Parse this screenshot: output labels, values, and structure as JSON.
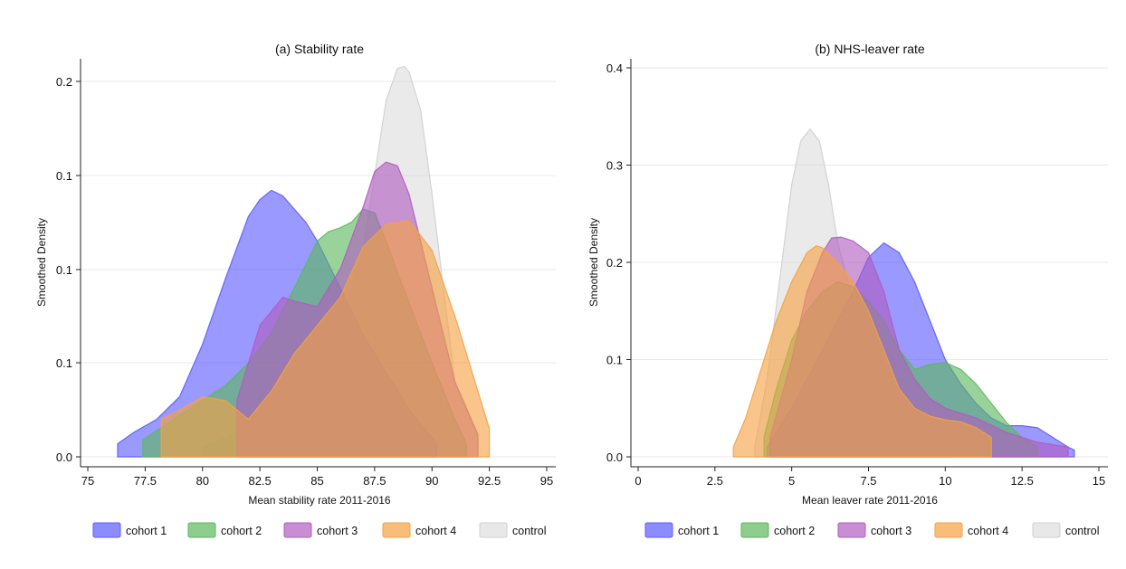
{
  "chart_data": [
    {
      "type": "area",
      "title": "(a) Stability rate",
      "xlabel": "Mean stability rate 2011-2016",
      "ylabel": "Smoothed Density",
      "xlim": [
        75,
        95
      ],
      "ylim": [
        0,
        0.2
      ],
      "xticks": [
        "75",
        "77.5",
        "80",
        "82.5",
        "85",
        "87.5",
        "90",
        "92.5",
        "95"
      ],
      "yticks": [
        "0.0",
        "0.1",
        "0.1",
        "0.1",
        "0.1",
        "0.2"
      ],
      "grid": "horizontal",
      "legend_position": "bottom",
      "series": [
        {
          "name": "cohort 1",
          "color": "#5b5bff",
          "x": [
            76.3,
            77,
            78,
            79,
            80,
            81,
            82,
            82.5,
            83,
            83.5,
            84,
            84.5,
            85,
            86,
            87,
            88,
            89,
            90.2
          ],
          "y": [
            0.007,
            0.013,
            0.02,
            0.032,
            0.06,
            0.095,
            0.128,
            0.137,
            0.142,
            0.139,
            0.132,
            0.125,
            0.115,
            0.09,
            0.065,
            0.045,
            0.025,
            0.007
          ]
        },
        {
          "name": "cohort 2",
          "color": "#5cb85c",
          "x": [
            77.4,
            79,
            80,
            81,
            82,
            83,
            84,
            85,
            85.5,
            86,
            86.5,
            87,
            87.5,
            88,
            88.5,
            89,
            90,
            91,
            91.5
          ],
          "y": [
            0.009,
            0.022,
            0.03,
            0.038,
            0.05,
            0.066,
            0.09,
            0.115,
            0.12,
            0.122,
            0.125,
            0.132,
            0.13,
            0.115,
            0.098,
            0.082,
            0.05,
            0.02,
            0.007
          ]
        },
        {
          "name": "cohort 3",
          "color": "#b05cc0",
          "x": [
            81.5,
            82.5,
            83.5,
            84,
            85,
            86,
            87,
            87.5,
            88,
            88.5,
            89,
            90,
            91,
            92
          ],
          "y": [
            0.03,
            0.07,
            0.085,
            0.083,
            0.08,
            0.1,
            0.133,
            0.152,
            0.157,
            0.155,
            0.14,
            0.09,
            0.04,
            0.012
          ]
        },
        {
          "name": "cohort 4",
          "color": "#f5a142",
          "x": [
            78.2,
            79,
            80,
            81,
            82,
            83,
            84,
            85,
            86,
            87,
            88,
            89,
            90,
            91,
            92,
            92.5
          ],
          "y": [
            0.02,
            0.025,
            0.032,
            0.03,
            0.02,
            0.035,
            0.055,
            0.07,
            0.085,
            0.112,
            0.124,
            0.126,
            0.11,
            0.075,
            0.035,
            0.015
          ]
        },
        {
          "name": "control",
          "color": "#d9d9d9",
          "x": [
            80,
            81,
            82,
            83,
            84,
            85,
            86,
            87,
            87.5,
            88,
            88.5,
            88.8,
            89,
            89.5,
            90,
            90.5,
            91,
            92
          ],
          "y": [
            0.005,
            0.01,
            0.016,
            0.024,
            0.036,
            0.05,
            0.07,
            0.11,
            0.15,
            0.19,
            0.207,
            0.208,
            0.205,
            0.185,
            0.14,
            0.09,
            0.04,
            0.01
          ]
        }
      ]
    },
    {
      "type": "area",
      "title": "(b) NHS-leaver rate",
      "xlabel": "Mean leaver rate 2011-2016",
      "ylabel": "Smoothed Density",
      "xlim": [
        0,
        15
      ],
      "ylim": [
        0,
        0.4
      ],
      "xticks": [
        "0",
        "2.5",
        "5",
        "7.5",
        "10",
        "12.5",
        "15"
      ],
      "yticks": [
        "0.0",
        "0.1",
        "0.2",
        "0.3",
        "0.4"
      ],
      "grid": "horizontal",
      "legend_position": "bottom",
      "series": [
        {
          "name": "cohort 1",
          "color": "#5b5bff",
          "x": [
            4.2,
            5,
            6,
            7,
            7.5,
            8,
            8.5,
            9,
            9.5,
            10,
            10.5,
            11,
            11.5,
            12,
            12.5,
            13,
            13.5,
            14,
            14.2
          ],
          "y": [
            0.01,
            0.05,
            0.11,
            0.17,
            0.205,
            0.22,
            0.21,
            0.18,
            0.14,
            0.1,
            0.075,
            0.055,
            0.04,
            0.032,
            0.032,
            0.03,
            0.02,
            0.01,
            0.007
          ]
        },
        {
          "name": "cohort 2",
          "color": "#5cb85c",
          "x": [
            4.1,
            4.5,
            5,
            5.5,
            6,
            6.5,
            7,
            7.5,
            8,
            8.5,
            9,
            9.5,
            10,
            10.5,
            11,
            11.5,
            12,
            12.5,
            13
          ],
          "y": [
            0.02,
            0.07,
            0.12,
            0.15,
            0.17,
            0.18,
            0.175,
            0.16,
            0.14,
            0.11,
            0.09,
            0.095,
            0.097,
            0.09,
            0.075,
            0.055,
            0.035,
            0.02,
            0.01
          ]
        },
        {
          "name": "cohort 3",
          "color": "#b05cc0",
          "x": [
            4.3,
            5,
            5.5,
            6,
            6.3,
            6.6,
            7,
            7.5,
            8,
            8.5,
            9,
            9.5,
            10,
            11,
            12,
            13,
            14
          ],
          "y": [
            0.02,
            0.1,
            0.17,
            0.21,
            0.225,
            0.226,
            0.222,
            0.21,
            0.17,
            0.11,
            0.08,
            0.06,
            0.05,
            0.04,
            0.025,
            0.015,
            0.01
          ]
        },
        {
          "name": "cohort 4",
          "color": "#f5a142",
          "x": [
            3.1,
            3.5,
            4,
            4.5,
            5,
            5.5,
            5.8,
            6,
            6.5,
            7,
            7.5,
            8,
            8.5,
            9,
            9.5,
            10,
            10.5,
            11,
            11.5
          ],
          "y": [
            0.01,
            0.04,
            0.09,
            0.14,
            0.18,
            0.21,
            0.217,
            0.215,
            0.2,
            0.18,
            0.15,
            0.11,
            0.07,
            0.05,
            0.042,
            0.038,
            0.036,
            0.03,
            0.02
          ]
        },
        {
          "name": "control",
          "color": "#d9d9d9",
          "x": [
            3.8,
            4.2,
            4.6,
            5,
            5.3,
            5.6,
            5.9,
            6.2,
            6.5,
            7,
            7.5,
            8,
            8.5,
            9,
            9.5,
            10,
            10.2
          ],
          "y": [
            0.01,
            0.08,
            0.18,
            0.28,
            0.325,
            0.337,
            0.325,
            0.28,
            0.22,
            0.16,
            0.12,
            0.09,
            0.07,
            0.05,
            0.035,
            0.02,
            0.01
          ]
        }
      ]
    }
  ]
}
